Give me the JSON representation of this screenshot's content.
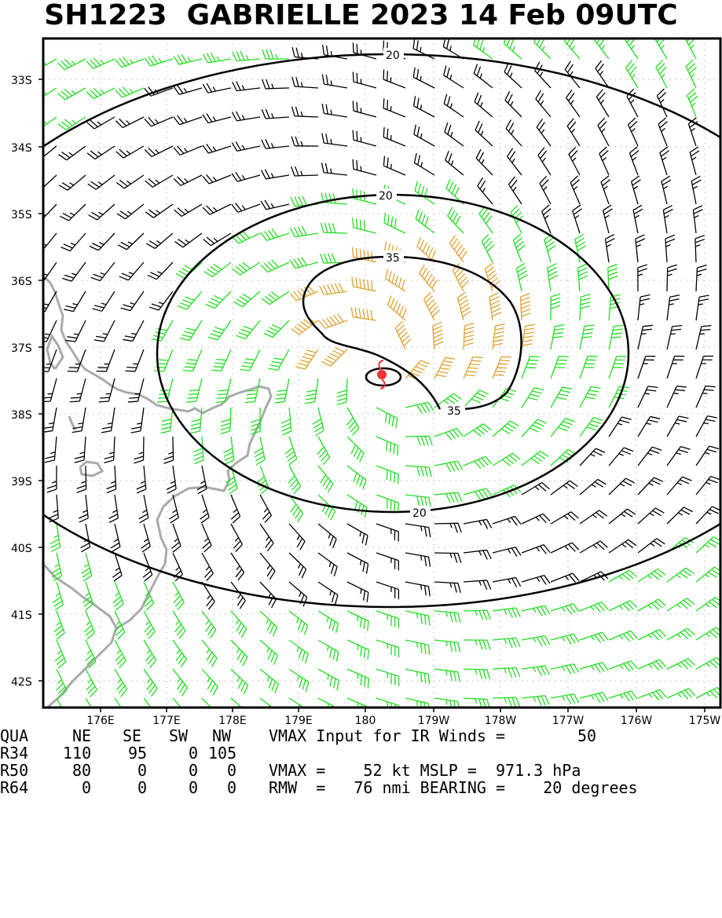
{
  "title": "SH1223  GABRIELLE 2023 14 Feb 09UTC",
  "map": {
    "lat_labels": [
      "33S",
      "34S",
      "35S",
      "36S",
      "37S",
      "38S",
      "39S",
      "40S",
      "41S",
      "42S"
    ],
    "lon_labels": [
      "176E",
      "177E",
      "178E",
      "179E",
      "180",
      "179W",
      "178W",
      "177W",
      "176W",
      "175W"
    ],
    "contour_labels": [
      "20",
      "20",
      "20",
      "35",
      "35"
    ],
    "colors": {
      "below_34kt": "#000000",
      "34_to_50kt": "#22dd22",
      "50_to_64kt": "#e0a030",
      "coastline": "#aaaaaa",
      "storm_symbol": "#ee3333"
    },
    "storm_symbol_icon": "tropical-cyclone-icon"
  },
  "info": {
    "header": [
      "QUA",
      "NE",
      "SE",
      "SW",
      "NW"
    ],
    "rows": [
      [
        "R34",
        "110",
        "95",
        "0",
        "105"
      ],
      [
        "R50",
        "80",
        "0",
        "0",
        "0"
      ],
      [
        "R64",
        "0",
        "0",
        "0",
        "0"
      ]
    ],
    "vmax_input_label": "VMAX Input for IR Winds =",
    "vmax_input_value": "50",
    "vmax_line": "VMAX =    52 kt MSLP =  971.3 hPa",
    "rmw_line": "RMW  =   76 nmi BEARING =    20 degrees"
  }
}
